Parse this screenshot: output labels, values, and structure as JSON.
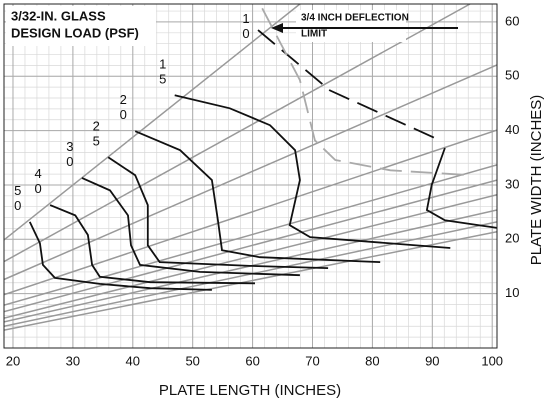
{
  "chart_data": {
    "type": "line",
    "title": [
      "3/32-IN. GLASS",
      "DESIGN LOAD (PSF)"
    ],
    "x_label": "PLATE LENGTH (INCHES)",
    "y_label": "PLATE WIDTH (INCHES)",
    "xlim": [
      18.5,
      100.8
    ],
    "ylim": [
      0,
      63.3
    ],
    "xticks": [
      20,
      30,
      40,
      50,
      60,
      70,
      80,
      90,
      100
    ],
    "yticks": [
      10,
      20,
      30,
      40,
      50,
      60
    ],
    "grid": true,
    "y_axis_side": "right",
    "guide_color": "#999999",
    "guide_lines": [
      {
        "x": [
          18.5,
          67.9
        ],
        "values": [
          19.9,
          63.3
        ]
      },
      {
        "x": [
          18.5,
          96.3
        ],
        "values": [
          15.9,
          63.3
        ]
      },
      {
        "x": [
          18.5,
          100.8
        ],
        "values": [
          12.6,
          52.1
        ]
      },
      {
        "x": [
          18.5,
          100.8
        ],
        "values": [
          9.8,
          40.1
        ]
      },
      {
        "x": [
          18.5,
          100.8
        ],
        "values": [
          7.9,
          33.7
        ]
      },
      {
        "x": [
          18.5,
          100.8
        ],
        "values": [
          6.7,
          30.9
        ]
      },
      {
        "x": [
          18.5,
          100.8
        ],
        "values": [
          5.5,
          28.2
        ]
      },
      {
        "x": [
          18.5,
          100.8
        ],
        "values": [
          4.8,
          25.4
        ]
      },
      {
        "x": [
          18.5,
          100.8
        ],
        "values": [
          4.0,
          23.2
        ]
      },
      {
        "x": [
          18.5,
          100.8
        ],
        "values": [
          3.3,
          21.4
        ]
      }
    ],
    "series": [
      {
        "name": "50",
        "color": "#111111",
        "x": [
          22.8,
          24.5,
          25.0,
          27.0,
          34.5,
          42.9,
          53.2
        ],
        "values": [
          23.2,
          19.3,
          15.3,
          12.9,
          11.8,
          11.0,
          10.7
        ]
      },
      {
        "name": "40",
        "color": "#111111",
        "x": [
          26.2,
          30.4,
          32.5,
          33.2,
          34.5,
          42.9,
          60.4
        ],
        "values": [
          26.3,
          24.4,
          20.8,
          15.3,
          13.1,
          12.1,
          11.9
        ]
      },
      {
        "name": "30",
        "color": "#111111",
        "x": [
          31.5,
          36.2,
          39.2,
          39.7,
          41.2,
          51.2,
          67.9
        ],
        "values": [
          31.3,
          29.0,
          24.4,
          18.9,
          15.3,
          14.0,
          13.4
        ]
      },
      {
        "name": "25",
        "color": "#111111",
        "x": [
          35.9,
          40.4,
          42.5,
          42.5,
          44.5,
          59.6,
          72.6
        ],
        "values": [
          35.1,
          31.8,
          26.3,
          18.9,
          15.8,
          15.1,
          14.7
        ]
      },
      {
        "name": "20",
        "color": "#111111",
        "x": [
          40.4,
          47.9,
          53.2,
          54.2,
          54.9,
          61.2,
          81.3
        ],
        "values": [
          39.9,
          36.4,
          30.9,
          23.5,
          18.0,
          16.7,
          15.8
        ]
      },
      {
        "name": "15",
        "color": "#111111",
        "x": [
          47.0,
          56.2,
          62.9,
          67.1,
          67.9,
          66.2,
          69.6,
          93.0
        ],
        "values": [
          46.5,
          44.1,
          41.0,
          36.4,
          30.9,
          22.6,
          20.4,
          18.4
        ]
      },
      {
        "name": "10",
        "color": "#111111",
        "dash": true,
        "x": [
          60.9,
          72.9,
          91.3
        ],
        "values": [
          58.5,
          47.4,
          38.2
        ]
      },
      {
        "color": "#111111",
        "x": [
          92.1,
          89.9,
          89.1,
          92.1,
          100.8
        ],
        "values": [
          36.8,
          30.0,
          25.4,
          23.5,
          22.1
        ]
      },
      {
        "color": "#aaaaaa",
        "dash": true,
        "x": [
          61.6,
          67.9,
          70.4,
          73.8,
          83.0,
          96.3
        ],
        "values": [
          62.5,
          49.3,
          38.2,
          34.6,
          32.7,
          31.8
        ]
      }
    ],
    "annotation": [
      "3/4 INCH DEFLECTION",
      "LIMIT"
    ]
  }
}
